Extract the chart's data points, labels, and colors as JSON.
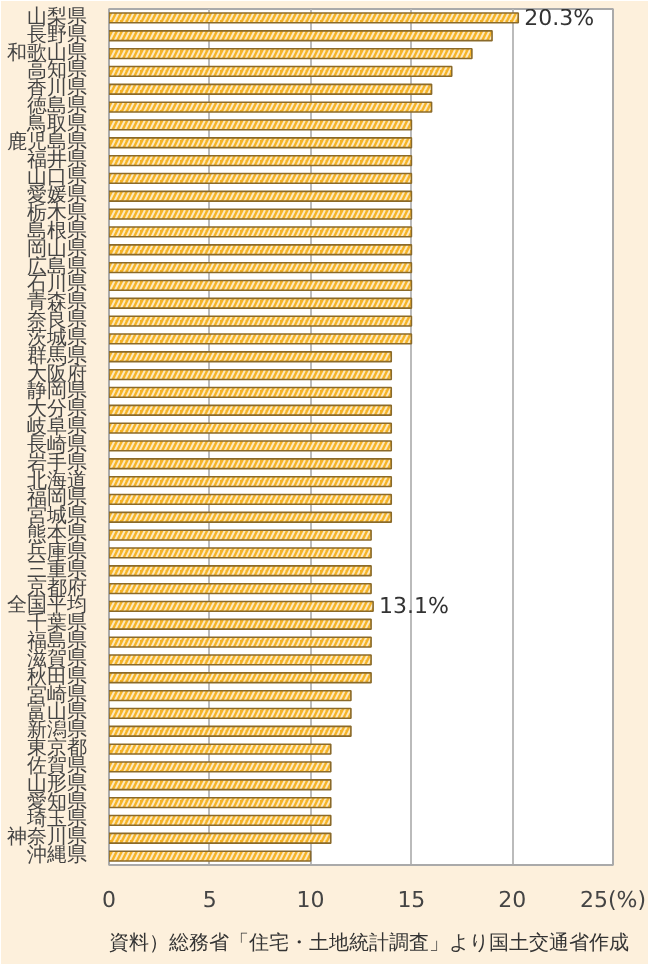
{
  "chart_data": {
    "type": "bar",
    "orientation": "horizontal",
    "categories": [
      "山梨県",
      "長野県",
      "和歌山県",
      "高知県",
      "香川県",
      "徳島県",
      "鳥取県",
      "鹿児島県",
      "福井県",
      "山口県",
      "愛媛県",
      "栃木県",
      "島根県",
      "岡山県",
      "広島県",
      "石川県",
      "青森県",
      "奈良県",
      "茨城県",
      "群馬県",
      "大阪府",
      "静岡県",
      "大分県",
      "岐阜県",
      "長崎県",
      "岩手県",
      "北海道",
      "福岡県",
      "宮城県",
      "熊本県",
      "兵庫県",
      "三重県",
      "京都府",
      "全国平均",
      "千葉県",
      "福島県",
      "滋賀県",
      "秋田県",
      "宮崎県",
      "富山県",
      "新潟県",
      "東京都",
      "佐賀県",
      "山形県",
      "愛知県",
      "埼玉県",
      "神奈川県",
      "沖縄県"
    ],
    "values": [
      20.3,
      19,
      18,
      17,
      16,
      16,
      15,
      15,
      15,
      15,
      15,
      15,
      15,
      15,
      15,
      15,
      15,
      15,
      15,
      14,
      14,
      14,
      14,
      14,
      14,
      14,
      14,
      14,
      14,
      13,
      13,
      13,
      13,
      13.1,
      13,
      13,
      13,
      13,
      12,
      12,
      12,
      11,
      11,
      11,
      11,
      11,
      11,
      10
    ],
    "value_labels": [
      "20.3%",
      null,
      null,
      null,
      null,
      null,
      null,
      null,
      null,
      null,
      null,
      null,
      null,
      null,
      null,
      null,
      null,
      null,
      null,
      null,
      null,
      null,
      null,
      null,
      null,
      null,
      null,
      null,
      null,
      null,
      null,
      null,
      null,
      "13.1%",
      null,
      null,
      null,
      null,
      null,
      null,
      null,
      null,
      null,
      null,
      null,
      null,
      null,
      null
    ],
    "color": "#f5b428",
    "xlim": [
      0,
      25
    ],
    "xticks": [
      0,
      5,
      10,
      15,
      20,
      {
        "value": 25,
        "label": "25(%)"
      }
    ],
    "grid": "x",
    "annotations": [
      "資料）総務省「住宅・土地統計調査」より国土交通省作成"
    ]
  }
}
